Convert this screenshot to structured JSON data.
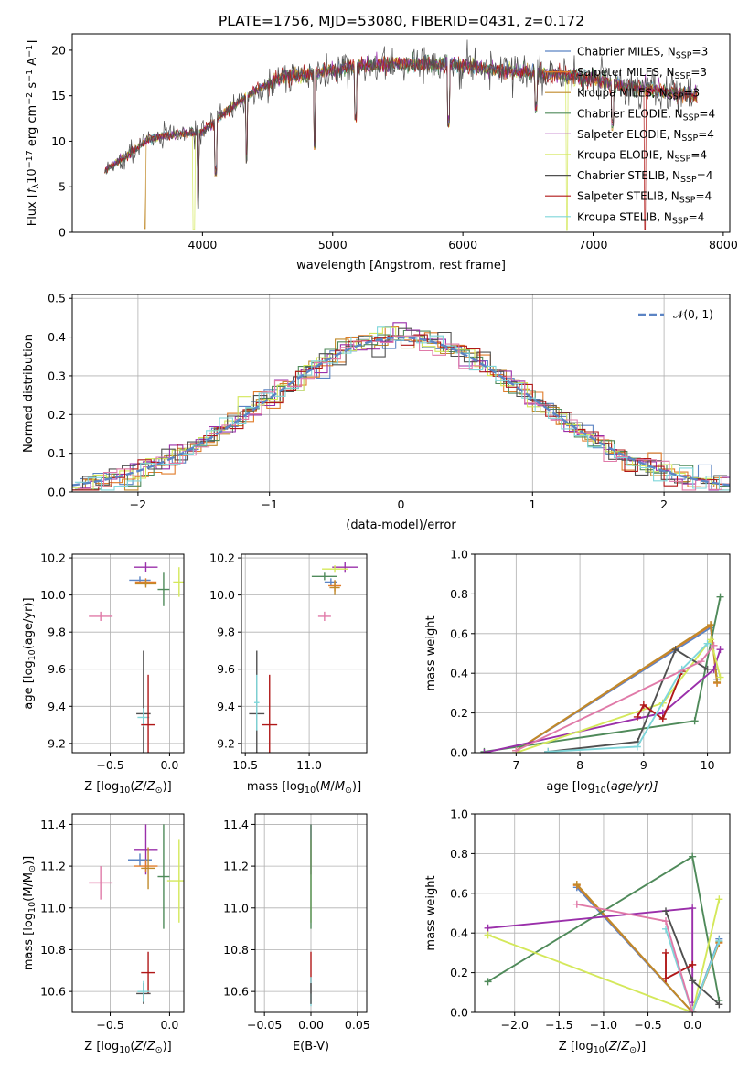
{
  "colors": {
    "Chabrier MILES": "#5b84c4",
    "Salpeter MILES": "#e07c2a",
    "Kroupa MILES": "#c08a2a",
    "Chabrier ELODIE": "#4f8a5a",
    "Salpeter ELODIE": "#9a2faa",
    "Kroupa ELODIE": "#d4e85a",
    "Chabrier STELIB": "#505050",
    "Salpeter STELIB": "#b01818",
    "Kroupa STELIB": "#7fd6da",
    "pink": "#e07aa8",
    "normal": "#5b84c4"
  },
  "chart_data": [
    {
      "id": "spectrum",
      "type": "line",
      "title": "PLATE=1756, MJD=53080, FIBERID=0431, z=0.172",
      "xlabel": "wavelength [Angstrom, rest frame]",
      "ylabel_parts": [
        "Flux [",
        "f",
        "λ",
        "10",
        "−17",
        " erg cm",
        "−2",
        " s",
        "−1",
        " A",
        "−1",
        "]"
      ],
      "xlim": [
        3000,
        8050
      ],
      "ylim": [
        0,
        21.8
      ],
      "xticks": [
        4000,
        5000,
        6000,
        7000,
        8000
      ],
      "yticks": [
        0,
        5,
        10,
        15,
        20
      ],
      "continuum": [
        [
          3250,
          6.8
        ],
        [
          3400,
          8.2
        ],
        [
          3600,
          10.3
        ],
        [
          3800,
          10.8
        ],
        [
          4000,
          11.0
        ],
        [
          4200,
          13.5
        ],
        [
          4400,
          15.5
        ],
        [
          4600,
          17.0
        ],
        [
          4800,
          17.3
        ],
        [
          5000,
          17.8
        ],
        [
          5200,
          18.3
        ],
        [
          5400,
          18.5
        ],
        [
          5700,
          18.5
        ],
        [
          6000,
          18.3
        ],
        [
          6300,
          17.8
        ],
        [
          6600,
          17.5
        ],
        [
          6900,
          17.0
        ],
        [
          7200,
          16.2
        ],
        [
          7500,
          15.6
        ],
        [
          7800,
          15.0
        ]
      ],
      "dips": [
        [
          3560,
          0.4
        ],
        [
          3934,
          0.3
        ],
        [
          3968,
          2.5
        ],
        [
          4102,
          6.0
        ],
        [
          4340,
          7.5
        ],
        [
          4861,
          9.0
        ],
        [
          5175,
          12.0
        ],
        [
          5890,
          11.5
        ],
        [
          6563,
          13.0
        ],
        [
          6800,
          0.2
        ],
        [
          7150,
          11.0
        ],
        [
          7400,
          0.3
        ]
      ],
      "legend": [
        {
          "imf": "Chabrier",
          "lib": "MILES",
          "n": "3",
          "color_key": "Chabrier MILES"
        },
        {
          "imf": "Salpeter",
          "lib": "MILES",
          "n": "3",
          "color_key": "Salpeter MILES"
        },
        {
          "imf": "Kroupa",
          "lib": "MILES",
          "n": "3",
          "color_key": "Kroupa MILES"
        },
        {
          "imf": "Chabrier",
          "lib": "ELODIE",
          "n": "4",
          "color_key": "Chabrier ELODIE"
        },
        {
          "imf": "Salpeter",
          "lib": "ELODIE",
          "n": "4",
          "color_key": "Salpeter ELODIE"
        },
        {
          "imf": "Kroupa",
          "lib": "ELODIE",
          "n": "4",
          "color_key": "Kroupa ELODIE"
        },
        {
          "imf": "Chabrier",
          "lib": "STELIB",
          "n": "4",
          "color_key": "Chabrier STELIB"
        },
        {
          "imf": "Salpeter",
          "lib": "STELIB",
          "n": "4",
          "color_key": "Salpeter STELIB"
        },
        {
          "imf": "Kroupa",
          "lib": "STELIB",
          "n": "4",
          "color_key": "Kroupa STELIB"
        }
      ],
      "legend_placement": "upper-right"
    },
    {
      "id": "residuals",
      "type": "step",
      "xlabel": "(data-model)/error",
      "ylabel": "Normed distribution",
      "xlim": [
        -2.5,
        2.5
      ],
      "ylim": [
        0,
        0.51
      ],
      "xticks": [
        -2,
        -1,
        0,
        1,
        2
      ],
      "yticks": [
        0.0,
        0.1,
        0.2,
        0.3,
        0.4,
        0.5
      ],
      "grid": true,
      "bin_width": 0.1,
      "normal_curve": {
        "mu": 0,
        "sigma": 1,
        "label": "𝒩(0, 1)",
        "style": "dashed"
      },
      "legend_placement": "upper-right"
    },
    {
      "id": "age_vs_Z",
      "type": "errorbar",
      "xlabel_parts": [
        "Z [log",
        "10",
        "(Z/Z",
        "⊙",
        ")]"
      ],
      "ylabel_parts": [
        "age  [log",
        "10",
        "(age/yr)]"
      ],
      "xlim": [
        -0.82,
        0.12
      ],
      "ylim": [
        9.15,
        10.22
      ],
      "xticks": [
        -0.5,
        0.0
      ],
      "yticks": [
        9.2,
        9.4,
        9.6,
        9.8,
        10.0,
        10.2
      ],
      "grid": true,
      "points": [
        {
          "c": "pink",
          "x": -0.58,
          "y": 9.885,
          "xe": 0.1,
          "ye": 0.025
        },
        {
          "c": "Salpeter ELODIE",
          "x": -0.2,
          "y": 10.15,
          "xe": 0.1,
          "ye": 0.025
        },
        {
          "c": "Chabrier MILES",
          "x": -0.25,
          "y": 10.08,
          "xe": 0.09,
          "ye": 0.02
        },
        {
          "c": "Salpeter MILES",
          "x": -0.2,
          "y": 10.07,
          "xe": 0.09,
          "ye": 0.02
        },
        {
          "c": "Kroupa MILES",
          "x": -0.2,
          "y": 10.06,
          "xe": 0.09,
          "ye": 0.02
        },
        {
          "c": "Chabrier ELODIE",
          "x": -0.05,
          "y": 10.03,
          "xe": 0.05,
          "ye": 0.09
        },
        {
          "c": "Kroupa ELODIE",
          "x": 0.08,
          "y": 10.07,
          "xe": 0.05,
          "ye": 0.08
        },
        {
          "c": "Chabrier STELIB",
          "x": -0.22,
          "y": 9.36,
          "xe": 0.06,
          "ye": 0.34
        },
        {
          "c": "Kroupa STELIB",
          "x": -0.22,
          "y": 9.34,
          "xe": 0.05,
          "ye": 0.05
        },
        {
          "c": "Salpeter STELIB",
          "x": -0.18,
          "y": 9.3,
          "xe": 0.06,
          "ye": 0.27
        }
      ]
    },
    {
      "id": "age_vs_mass",
      "type": "errorbar",
      "xlabel_parts": [
        "mass [log",
        "10",
        "(M/M",
        "⊙",
        ")]"
      ],
      "ylabel": "",
      "xlim": [
        10.47,
        11.45
      ],
      "ylim": [
        9.15,
        10.22
      ],
      "xticks": [
        10.5,
        11.0
      ],
      "yticks": [
        9.2,
        9.4,
        9.6,
        9.8,
        10.0,
        10.2
      ],
      "grid": true,
      "points": [
        {
          "c": "pink",
          "x": 11.12,
          "y": 9.885,
          "xe": 0.05,
          "ye": 0.025
        },
        {
          "c": "Salpeter ELODIE",
          "x": 11.28,
          "y": 10.15,
          "xe": 0.1,
          "ye": 0.03
        },
        {
          "c": "Kroupa ELODIE",
          "x": 11.2,
          "y": 10.14,
          "xe": 0.1,
          "ye": 0.02
        },
        {
          "c": "Chabrier ELODIE",
          "x": 11.12,
          "y": 10.1,
          "xe": 0.1,
          "ye": 0.02
        },
        {
          "c": "Chabrier MILES",
          "x": 11.17,
          "y": 10.07,
          "xe": 0.05,
          "ye": 0.02
        },
        {
          "c": "Salpeter MILES",
          "x": 11.2,
          "y": 10.05,
          "xe": 0.05,
          "ye": 0.03
        },
        {
          "c": "Kroupa MILES",
          "x": 11.2,
          "y": 10.04,
          "xe": 0.04,
          "ye": 0.04
        },
        {
          "c": "Chabrier STELIB",
          "x": 10.59,
          "y": 9.36,
          "xe": 0.06,
          "ye": 0.34
        },
        {
          "c": "Kroupa STELIB",
          "x": 10.59,
          "y": 9.42,
          "xe": 0.02,
          "ye": 0.15
        },
        {
          "c": "Salpeter STELIB",
          "x": 10.69,
          "y": 9.3,
          "xe": 0.06,
          "ye": 0.27
        }
      ]
    },
    {
      "id": "mass_weight_vs_age",
      "type": "line",
      "xlabel_parts": [
        "age  [log",
        "10",
        "(age/yr)]"
      ],
      "ylabel": "mass weight",
      "xlim": [
        6.35,
        10.35
      ],
      "ylim": [
        0,
        1
      ],
      "xticks": [
        7,
        8,
        9,
        10
      ],
      "yticks": [
        0.0,
        0.2,
        0.4,
        0.6,
        0.8,
        1.0
      ],
      "grid": true,
      "series": [
        {
          "c": "Chabrier MILES",
          "x": [
            7.0,
            10.05,
            10.15
          ],
          "y": [
            0.01,
            0.63,
            0.37
          ]
        },
        {
          "c": "Salpeter MILES",
          "x": [
            7.0,
            10.05,
            10.15
          ],
          "y": [
            0.01,
            0.64,
            0.35
          ]
        },
        {
          "c": "Kroupa MILES",
          "x": [
            7.0,
            10.05,
            10.15
          ],
          "y": [
            0.01,
            0.645,
            0.355
          ]
        },
        {
          "c": "Chabrier ELODIE",
          "x": [
            6.5,
            9.8,
            10.2
          ],
          "y": [
            0.005,
            0.16,
            0.785
          ]
        },
        {
          "c": "Salpeter ELODIE",
          "x": [
            6.5,
            9.3,
            10.1,
            10.2
          ],
          "y": [
            0.0,
            0.2,
            0.42,
            0.52
          ]
        },
        {
          "c": "Kroupa ELODIE",
          "x": [
            7.0,
            9.3,
            10.05,
            10.2
          ],
          "y": [
            0.0,
            0.25,
            0.57,
            0.38
          ]
        },
        {
          "c": "Chabrier STELIB",
          "x": [
            7.5,
            8.9,
            9.5,
            10.0
          ],
          "y": [
            0.005,
            0.055,
            0.52,
            0.42
          ]
        },
        {
          "c": "Salpeter STELIB",
          "x": [
            8.9,
            9.0,
            9.3,
            9.6
          ],
          "y": [
            0.18,
            0.24,
            0.17,
            0.41
          ]
        },
        {
          "c": "Kroupa STELIB",
          "x": [
            7.5,
            8.9,
            9.6,
            10.0
          ],
          "y": [
            0.005,
            0.03,
            0.42,
            0.55
          ]
        },
        {
          "c": "pink",
          "x": [
            7.0,
            9.9,
            10.1
          ],
          "y": [
            0.01,
            0.46,
            0.54
          ]
        }
      ]
    },
    {
      "id": "mass_vs_Z",
      "type": "errorbar",
      "xlabel_parts": [
        "Z [log",
        "10",
        "(Z/Z",
        "⊙",
        ")]"
      ],
      "ylabel_parts": [
        "mass [log",
        "10",
        "(M/M",
        "⊙",
        ")]"
      ],
      "xlim": [
        -0.82,
        0.12
      ],
      "ylim": [
        10.5,
        11.45
      ],
      "xticks": [
        -0.5,
        0.0
      ],
      "yticks": [
        10.6,
        10.8,
        11.0,
        11.2,
        11.4
      ],
      "grid": true,
      "points": [
        {
          "c": "pink",
          "x": -0.58,
          "y": 11.12,
          "xe": 0.1,
          "ye": 0.08
        },
        {
          "c": "Salpeter ELODIE",
          "x": -0.2,
          "y": 11.28,
          "xe": 0.1,
          "ye": 0.12
        },
        {
          "c": "Chabrier MILES",
          "x": -0.25,
          "y": 11.23,
          "xe": 0.1,
          "ye": 0.03
        },
        {
          "c": "Salpeter MILES",
          "x": -0.2,
          "y": 11.2,
          "xe": 0.1,
          "ye": 0.03
        },
        {
          "c": "Kroupa MILES",
          "x": -0.18,
          "y": 11.19,
          "xe": 0.06,
          "ye": 0.1
        },
        {
          "c": "Chabrier ELODIE",
          "x": -0.05,
          "y": 11.15,
          "xe": 0.05,
          "ye": 0.25
        },
        {
          "c": "Kroupa ELODIE",
          "x": 0.08,
          "y": 11.13,
          "xe": 0.1,
          "ye": 0.2
        },
        {
          "c": "Salpeter STELIB",
          "x": -0.18,
          "y": 10.69,
          "xe": 0.06,
          "ye": 0.1
        },
        {
          "c": "Chabrier STELIB",
          "x": -0.22,
          "y": 10.59,
          "xe": 0.06,
          "ye": 0.05
        },
        {
          "c": "Kroupa STELIB",
          "x": -0.22,
          "y": 10.6,
          "xe": 0.05,
          "ye": 0.05
        }
      ]
    },
    {
      "id": "mass_vs_ebv",
      "type": "errorbar",
      "xlabel": "E(B-V)",
      "ylabel": "",
      "xlim": [
        -0.06,
        0.06
      ],
      "ylim": [
        10.5,
        11.45
      ],
      "xticks": [
        -0.05,
        0.0,
        0.05
      ],
      "yticks": [
        10.6,
        10.8,
        11.0,
        11.2,
        11.4
      ],
      "grid": true,
      "points": [
        {
          "c": "Salpeter ELODIE",
          "x": 0.0,
          "y": 11.28,
          "xe": 0.0,
          "ye": 0.12
        },
        {
          "c": "Kroupa ELODIE",
          "x": 0.0,
          "y": 11.13,
          "xe": 0.0,
          "ye": 0.2
        },
        {
          "c": "Chabrier ELODIE",
          "x": 0.0,
          "y": 11.15,
          "xe": 0.0,
          "ye": 0.25
        },
        {
          "c": "Salpeter STELIB",
          "x": 0.0,
          "y": 10.69,
          "xe": 0.0,
          "ye": 0.1
        },
        {
          "c": "Kroupa STELIB",
          "x": 0.0,
          "y": 10.6,
          "xe": 0.0,
          "ye": 0.07
        },
        {
          "c": "Chabrier STELIB",
          "x": 0.0,
          "y": 10.59,
          "xe": 0.0,
          "ye": 0.05
        }
      ]
    },
    {
      "id": "mass_weight_vs_Z",
      "type": "line",
      "xlabel_parts": [
        "Z [log",
        "10",
        "(Z/Z",
        "⊙",
        ")]"
      ],
      "ylabel": "mass weight",
      "xlim": [
        -2.45,
        0.42
      ],
      "ylim": [
        0,
        1
      ],
      "xticks": [
        -2.0,
        -1.5,
        -1.0,
        -0.5,
        0.0
      ],
      "yticks": [
        0.0,
        0.2,
        0.4,
        0.6,
        0.8,
        1.0
      ],
      "grid": true,
      "series": [
        {
          "c": "Chabrier MILES",
          "x": [
            -1.3,
            0.0,
            0.3
          ],
          "y": [
            0.63,
            0.0,
            0.37
          ]
        },
        {
          "c": "Salpeter MILES",
          "x": [
            -1.3,
            0.0,
            0.3
          ],
          "y": [
            0.64,
            0.0,
            0.35
          ]
        },
        {
          "c": "Kroupa MILES",
          "x": [
            -1.3,
            0.0,
            0.3
          ],
          "y": [
            0.645,
            0.0,
            0.355
          ]
        },
        {
          "c": "Chabrier ELODIE",
          "x": [
            -2.3,
            0.0,
            0.3
          ],
          "y": [
            0.155,
            0.785,
            0.06
          ]
        },
        {
          "c": "Salpeter ELODIE",
          "x": [
            -2.3,
            0.0,
            0.0
          ],
          "y": [
            0.425,
            0.525,
            0.05
          ]
        },
        {
          "c": "Kroupa ELODIE",
          "x": [
            -2.3,
            0.0,
            0.3
          ],
          "y": [
            0.39,
            0.0,
            0.57
          ]
        },
        {
          "c": "Chabrier STELIB",
          "x": [
            -0.3,
            0.0,
            0.3
          ],
          "y": [
            0.51,
            0.16,
            0.04
          ]
        },
        {
          "c": "Salpeter STELIB",
          "x": [
            -0.3,
            0.0,
            0.0
          ],
          "y": [
            0.17,
            0.24,
            0.24
          ]
        },
        {
          "c": "Kroupa STELIB",
          "x": [
            -0.3,
            0.0,
            0.3
          ],
          "y": [
            0.42,
            0.0,
            0.36
          ]
        },
        {
          "c": "Salpeter STELIB",
          "x": [
            -0.3,
            -0.3
          ],
          "y": [
            0.3,
            0.17
          ]
        },
        {
          "c": "pink",
          "x": [
            -1.3,
            -0.3,
            0.0
          ],
          "y": [
            0.545,
            0.46,
            0.0
          ]
        }
      ]
    }
  ]
}
